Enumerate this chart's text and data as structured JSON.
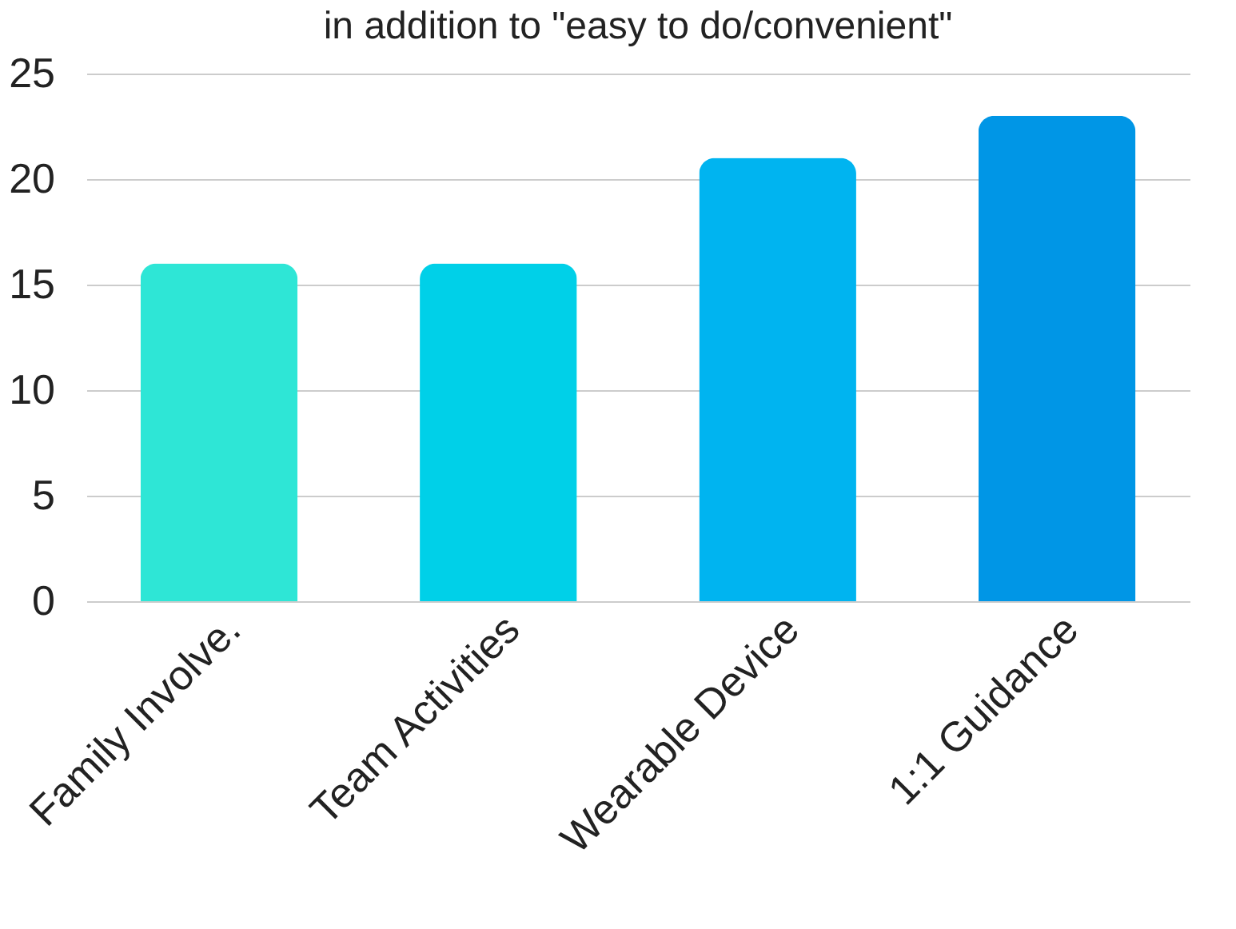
{
  "chart_data": {
    "type": "bar",
    "title": "in addition to \"easy to do/convenient\"",
    "categories": [
      "Family Involve.",
      "Team Activities",
      "Wearable Device",
      "1:1 Guidance"
    ],
    "values": [
      16,
      16,
      21,
      23
    ],
    "colors": [
      "#2ee6d6",
      "#00d0e8",
      "#00b4f0",
      "#0096e6"
    ],
    "ylim": [
      0,
      25
    ],
    "yticks": [
      0,
      5,
      10,
      15,
      20,
      25
    ],
    "grid": "y"
  }
}
